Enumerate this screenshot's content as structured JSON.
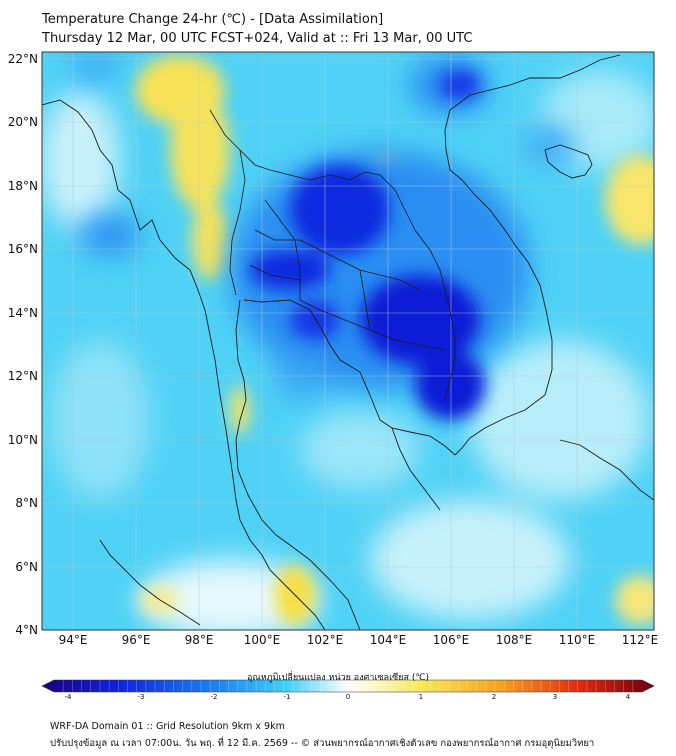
{
  "title": {
    "line1": "Temperature Change 24-hr (℃) - [Data Assimilation]",
    "line2": "Thursday 12 Mar, 00 UTC FCST+024, Valid at :: Fri 13 Mar, 00 UTC"
  },
  "map": {
    "lat_labels": [
      "22°N",
      "20°N",
      "18°N",
      "16°N",
      "14°N",
      "12°N",
      "10°N",
      "8°N",
      "6°N",
      "4°N"
    ],
    "lon_labels": [
      "94°E",
      "96°E",
      "98°E",
      "100°E",
      "102°E",
      "104°E",
      "106°E",
      "108°E",
      "110°E",
      "112°E"
    ]
  },
  "colorbar": {
    "title": "อุณหภูมิเปลี่ยนแปลง หน่วย องศาเซลเซียส (℃)",
    "ticks": [
      "-4",
      "-3",
      "-2",
      "-1",
      "0",
      "1",
      "2",
      "3",
      "4"
    ],
    "min": -4,
    "max": 4
  },
  "footer": {
    "line1": "WRF-DA Domain 01 :: Grid Resolution 9km x 9km",
    "line2": "ปรับปรุงข้อมูล ณ เวลา 07:00น. วัน พฤ. ที่ 12 มี.ค. 2569 -- © ส่วนพยากรณ์อากาศเชิงตัวเลข กองพยากรณ์อากาศ กรมอุตุนิยมวิทยา"
  },
  "colors": {
    "base": "#4fd2f6",
    "cold": "#0a1ad6",
    "warm": "#f8e257",
    "cb_min": "#1b007a",
    "cb_max": "#6a0010"
  }
}
